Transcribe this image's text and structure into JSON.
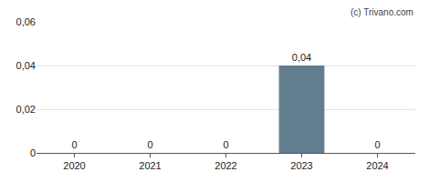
{
  "chart_data": {
    "type": "bar",
    "categories": [
      "2020",
      "2021",
      "2022",
      "2023",
      "2024"
    ],
    "values": [
      0,
      0,
      0,
      0.04,
      0
    ],
    "value_labels": [
      "0",
      "0",
      "0",
      "0,04",
      "0"
    ],
    "color": "#627d8e",
    "ylim": [
      0,
      0.06
    ],
    "yticks": [
      0,
      {
        "value": 0.02,
        "label": "0,02"
      },
      {
        "value": 0.04,
        "label": "0,04"
      },
      {
        "value": 0.06,
        "label": "0,06"
      }
    ],
    "grid": true,
    "data_labels": true,
    "annotations": [
      "(c) Trivano.com"
    ]
  }
}
